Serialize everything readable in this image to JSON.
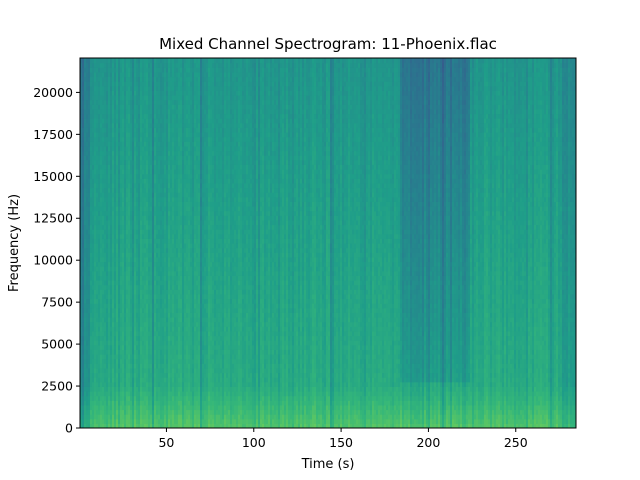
{
  "chart_data": {
    "type": "heatmap",
    "title": "Mixed Channel Spectrogram: 11-Phoenix.flac",
    "xlabel": "Time (s)",
    "ylabel": "Frequency (Hz)",
    "xlim": [
      0.5,
      284.5
    ],
    "ylim": [
      0,
      22050
    ],
    "xticks": [
      50,
      100,
      150,
      200,
      250
    ],
    "yticks": [
      0,
      2500,
      5000,
      7500,
      10000,
      12500,
      15000,
      17500,
      20000
    ],
    "colormap": "viridis",
    "grid": false,
    "quiet_sections_s": [
      [
        183,
        223
      ]
    ],
    "dark_edge_sections_s": [
      [
        0.5,
        6
      ],
      [
        276,
        284.5
      ]
    ],
    "bright_low_band_hz": [
      0,
      2500
    ]
  }
}
